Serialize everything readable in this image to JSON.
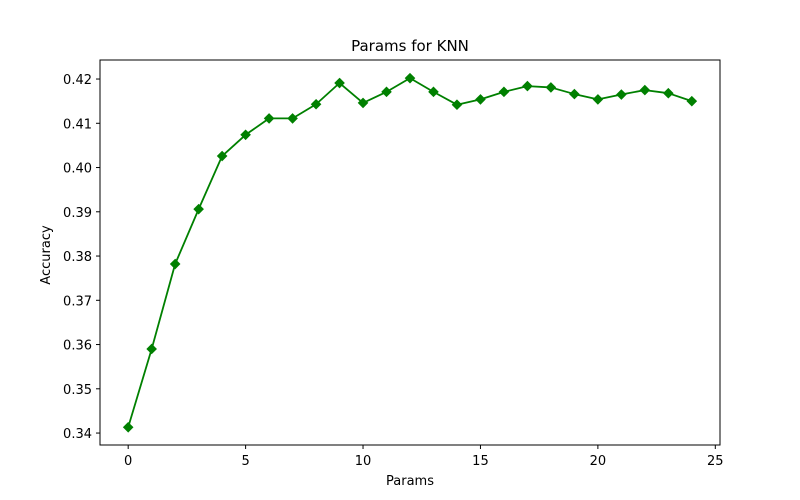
{
  "chart_data": {
    "type": "line",
    "title": "Params for KNN",
    "xlabel": "Params",
    "ylabel": "Accuracy",
    "xlim": [
      -1.2,
      25.2
    ],
    "ylim": [
      0.3373,
      0.4243
    ],
    "x_ticks": [
      0,
      5,
      10,
      15,
      20,
      25
    ],
    "x_tick_labels": [
      "0",
      "5",
      "10",
      "15",
      "20",
      "25"
    ],
    "y_ticks": [
      0.34,
      0.35,
      0.36,
      0.37,
      0.38,
      0.39,
      0.4,
      0.41,
      0.42
    ],
    "y_tick_labels": [
      "0.34",
      "0.35",
      "0.36",
      "0.37",
      "0.38",
      "0.39",
      "0.40",
      "0.41",
      "0.42"
    ],
    "grid": false,
    "series": [
      {
        "color": "#008000",
        "marker": "diamond",
        "x": [
          0,
          1,
          2,
          3,
          4,
          5,
          6,
          7,
          8,
          9,
          10,
          11,
          12,
          13,
          14,
          15,
          16,
          17,
          18,
          19,
          20,
          21,
          22,
          23,
          24
        ],
        "values": [
          0.3413,
          0.359,
          0.3782,
          0.3906,
          0.4026,
          0.4074,
          0.4111,
          0.4111,
          0.4143,
          0.4191,
          0.4146,
          0.4171,
          0.4202,
          0.4171,
          0.4142,
          0.4154,
          0.4171,
          0.4184,
          0.4181,
          0.4166,
          0.4154,
          0.4165,
          0.4175,
          0.4168,
          0.415
        ]
      }
    ]
  }
}
